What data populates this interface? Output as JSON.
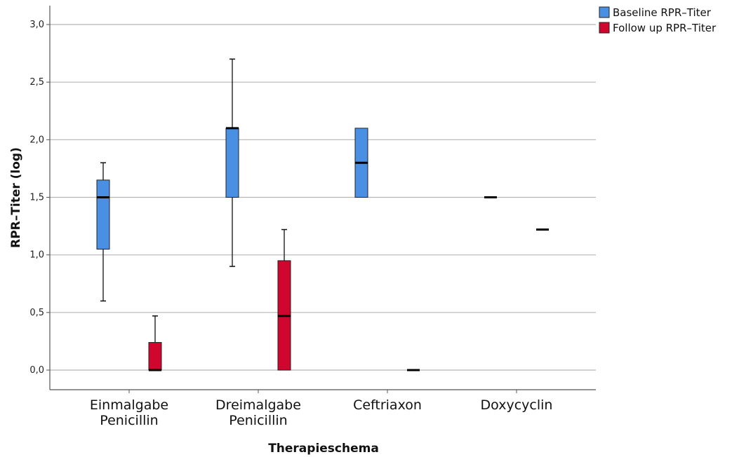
{
  "chart_data": {
    "type": "boxplot",
    "xlabel": "Therapieschema",
    "ylabel": "RPR–Titer (log)",
    "ylim": [
      -0.17,
      3.2
    ],
    "yticks": [
      "0,0",
      "0,5",
      "1,0",
      "1,5",
      "2,0",
      "2,5",
      "3,0"
    ],
    "ytick_values": [
      0,
      0.5,
      1.0,
      1.5,
      2.0,
      2.5,
      3.0
    ],
    "grid": "horizontal",
    "legend_position": "top-right",
    "categories": [
      {
        "line1": "Einmalgabe",
        "line2": "Penicillin"
      },
      {
        "line1": "Dreimalgabe",
        "line2": "Penicillin"
      },
      {
        "line1": "Ceftriaxon",
        "line2": ""
      },
      {
        "line1": "Doxycyclin",
        "line2": ""
      }
    ],
    "series": [
      {
        "name": "Baseline RPR–Titer",
        "color": "#4a90e2",
        "boxes": [
          {
            "min": 0.6,
            "q1": 1.05,
            "median": 1.5,
            "q3": 1.65,
            "max": 1.8
          },
          {
            "min": 0.9,
            "q1": 1.5,
            "median": 2.1,
            "q3": 2.1,
            "max": 2.7
          },
          {
            "min": 1.5,
            "q1": 1.5,
            "median": 1.8,
            "q3": 2.1,
            "max": 2.1
          },
          {
            "min": 1.5,
            "q1": 1.5,
            "median": 1.5,
            "q3": 1.5,
            "max": 1.5
          }
        ]
      },
      {
        "name": "Follow up RPR–Titer",
        "color": "#d0062f",
        "boxes": [
          {
            "min": 0.0,
            "q1": 0.0,
            "median": 0.0,
            "q3": 0.24,
            "max": 0.47
          },
          {
            "min": 0.0,
            "q1": 0.0,
            "median": 0.47,
            "q3": 0.95,
            "max": 1.22
          },
          {
            "min": 0.0,
            "q1": 0.0,
            "median": 0.0,
            "q3": 0.0,
            "max": 0.0
          },
          {
            "min": 1.22,
            "q1": 1.22,
            "median": 1.22,
            "q3": 1.22,
            "max": 1.22
          }
        ]
      }
    ]
  }
}
